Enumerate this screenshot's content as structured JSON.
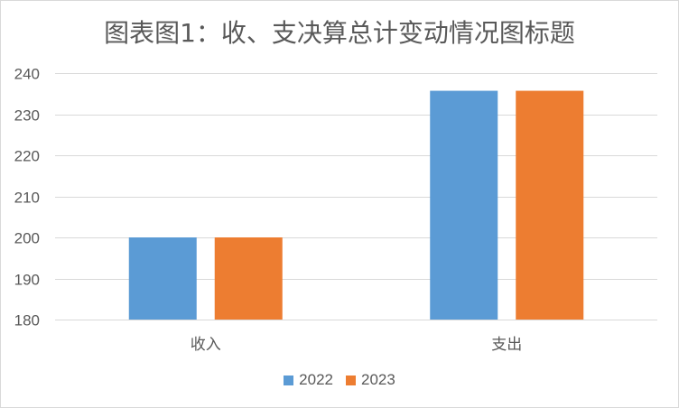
{
  "chart_data": {
    "type": "bar",
    "title": "图表图1：收、支决算总计变动情况图标题",
    "categories": [
      "收入",
      "支出"
    ],
    "series": [
      {
        "name": "2022",
        "color": "#5b9bd5",
        "values": [
          200,
          235.7
        ]
      },
      {
        "name": "2023",
        "color": "#ed7d31",
        "values": [
          200,
          235.7
        ]
      }
    ],
    "xlabel": "",
    "ylabel": "",
    "ylim": [
      180,
      240
    ],
    "yticks": [
      180,
      190,
      200,
      210,
      220,
      230,
      240
    ],
    "grid": true,
    "legend_position": "bottom"
  }
}
